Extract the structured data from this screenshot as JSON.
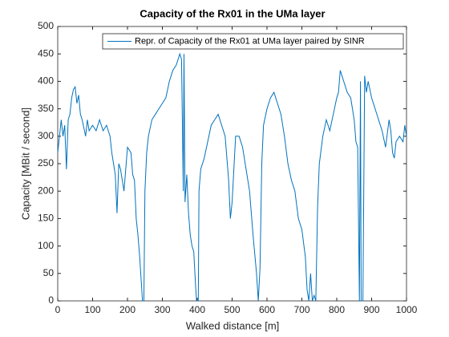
{
  "chart_data": {
    "type": "line",
    "title": "Capacity of the Rx01 in the UMa layer",
    "xlabel": "Walked distance [m]",
    "ylabel": "Capacity [MBit / second]",
    "xlim": [
      0,
      1000
    ],
    "ylim": [
      0,
      500
    ],
    "xticks": [
      0,
      100,
      200,
      300,
      400,
      500,
      600,
      700,
      800,
      900,
      1000
    ],
    "yticks": [
      0,
      50,
      100,
      150,
      200,
      250,
      300,
      350,
      400,
      450,
      500
    ],
    "grid": false,
    "legend": "top-right",
    "x": [
      0,
      5,
      10,
      15,
      20,
      25,
      30,
      35,
      40,
      45,
      50,
      55,
      60,
      65,
      70,
      80,
      85,
      90,
      100,
      110,
      120,
      130,
      140,
      150,
      155,
      160,
      165,
      170,
      175,
      180,
      190,
      195,
      200,
      210,
      215,
      220,
      225,
      230,
      235,
      240,
      243,
      247,
      250,
      255,
      260,
      270,
      280,
      290,
      300,
      310,
      320,
      330,
      340,
      350,
      355,
      360,
      362,
      365,
      370,
      375,
      380,
      385,
      390,
      395,
      398,
      403,
      405,
      410,
      420,
      430,
      440,
      450,
      460,
      470,
      480,
      490,
      495,
      500,
      505,
      510,
      520,
      530,
      540,
      550,
      560,
      570,
      575,
      580,
      585,
      590,
      600,
      610,
      620,
      630,
      640,
      650,
      660,
      670,
      680,
      690,
      700,
      710,
      715,
      720,
      725,
      730,
      735,
      740,
      745,
      750,
      760,
      770,
      780,
      790,
      800,
      805,
      810,
      815,
      820,
      830,
      840,
      850,
      855,
      860,
      865,
      868,
      870,
      875,
      880,
      885,
      890,
      900,
      910,
      920,
      930,
      940,
      950,
      955,
      960,
      965,
      970,
      980,
      990,
      995,
      1000
    ],
    "series": [
      {
        "name": "Repr. of Capacity of the Rx01 at UMa layer paired by SINR",
        "color": "#0072bd",
        "values": [
          270,
          300,
          330,
          300,
          320,
          240,
          330,
          340,
          370,
          385,
          390,
          360,
          375,
          340,
          330,
          300,
          330,
          310,
          320,
          310,
          330,
          310,
          320,
          300,
          270,
          250,
          230,
          160,
          250,
          240,
          200,
          240,
          280,
          270,
          230,
          220,
          150,
          120,
          80,
          30,
          0,
          0,
          200,
          270,
          300,
          330,
          340,
          350,
          360,
          370,
          400,
          420,
          430,
          450,
          440,
          200,
          450,
          180,
          230,
          160,
          120,
          100,
          90,
          30,
          0,
          0,
          200,
          240,
          260,
          290,
          320,
          330,
          340,
          320,
          300,
          220,
          150,
          180,
          240,
          300,
          300,
          280,
          240,
          200,
          120,
          50,
          0,
          60,
          250,
          320,
          350,
          370,
          380,
          360,
          340,
          300,
          250,
          220,
          200,
          150,
          130,
          80,
          20,
          0,
          50,
          0,
          10,
          0,
          170,
          250,
          300,
          330,
          310,
          340,
          370,
          380,
          420,
          410,
          400,
          380,
          370,
          330,
          290,
          280,
          0,
          400,
          0,
          0,
          410,
          380,
          400,
          370,
          350,
          330,
          310,
          280,
          330,
          310,
          270,
          260,
          290,
          300,
          290,
          320,
          300
        ]
      }
    ]
  }
}
